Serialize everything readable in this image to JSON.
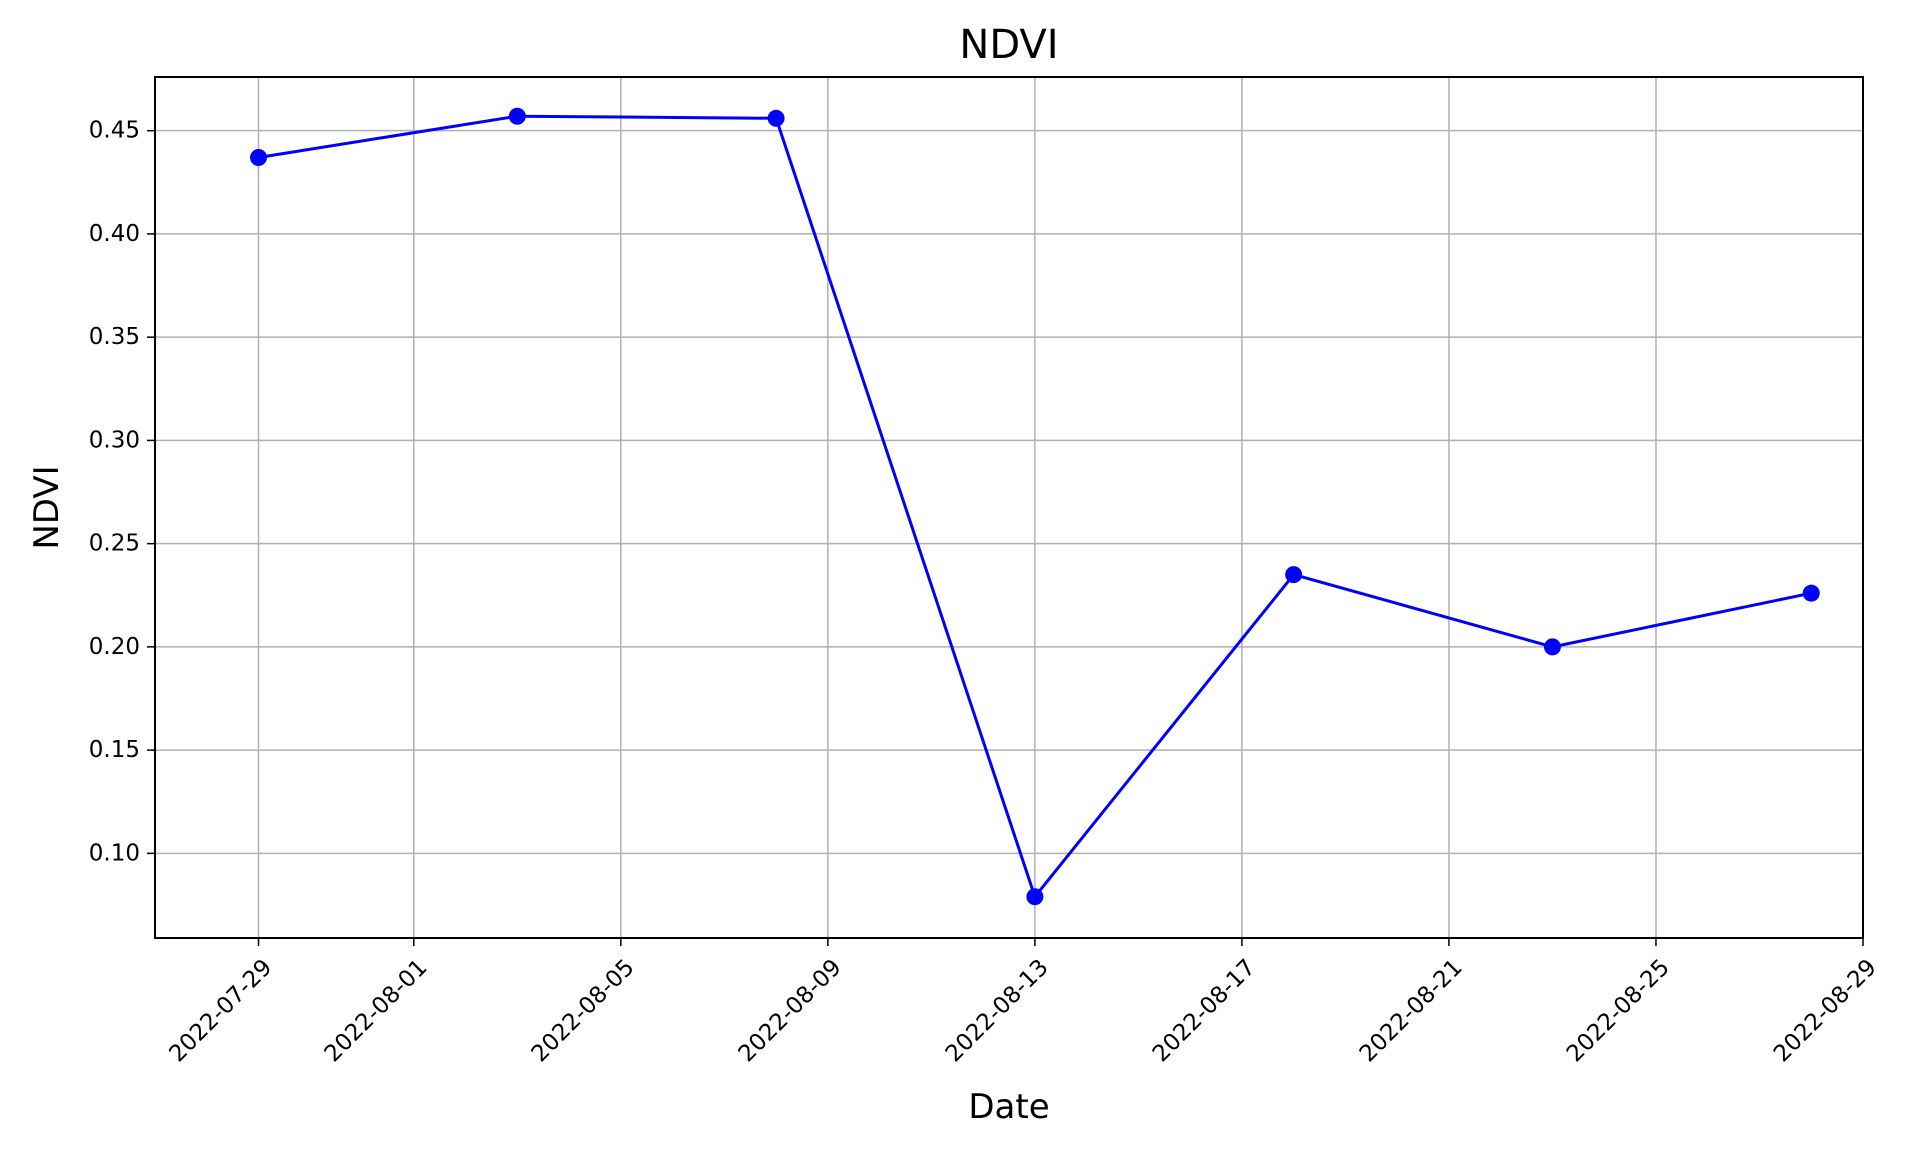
{
  "chart_data": {
    "type": "line",
    "title": "NDVI",
    "xlabel": "Date",
    "ylabel": "NDVI",
    "x_type": "date",
    "xlim": [
      "2022-07-27",
      "2022-08-29"
    ],
    "ylim": [
      0.059,
      0.476
    ],
    "grid": true,
    "x_ticks": [
      "2022-07-29",
      "2022-08-01",
      "2022-08-05",
      "2022-08-09",
      "2022-08-13",
      "2022-08-17",
      "2022-08-21",
      "2022-08-25",
      "2022-08-29"
    ],
    "y_ticks": [
      0.1,
      0.15,
      0.2,
      0.25,
      0.3,
      0.35,
      0.4,
      0.45
    ],
    "y_tick_labels": [
      "0.10",
      "0.15",
      "0.20",
      "0.25",
      "0.30",
      "0.35",
      "0.40",
      "0.45"
    ],
    "series": [
      {
        "color": "#0000ff",
        "marker": "circle",
        "x": [
          "2022-07-29",
          "2022-08-03",
          "2022-08-08",
          "2022-08-13",
          "2022-08-18",
          "2022-08-23",
          "2022-08-28"
        ],
        "y": [
          0.437,
          0.457,
          0.456,
          0.079,
          0.235,
          0.2,
          0.226
        ]
      }
    ]
  }
}
